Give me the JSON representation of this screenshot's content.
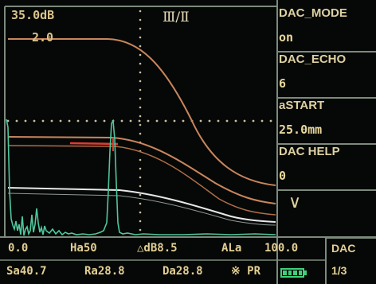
{
  "screen": {
    "gain_top": "35.0dB",
    "gain_ref": "2.0",
    "range_mode": "Ⅲ/Ⅱ"
  },
  "side_menu": {
    "items": [
      {
        "label": "DAC_MODE",
        "value": "on"
      },
      {
        "label": "DAC_ECHO",
        "value": "6"
      },
      {
        "label": "aSTART",
        "value": "25.0mm"
      },
      {
        "label": "DAC HELP",
        "value": "0"
      }
    ],
    "more_arrow": "∨"
  },
  "status_bar": {
    "row1": {
      "pos": "0.0",
      "ha": "Ha50",
      "delta_db": "△dB8.5",
      "ala_label": "ALa",
      "ala_value": "100.0"
    },
    "row2": {
      "sa": "Sa40.7",
      "ra": "Ra28.8",
      "da": "Da28.8",
      "pr": "※ PR"
    }
  },
  "menu_page": {
    "title": "DAC",
    "page": "1/3"
  },
  "colors": {
    "dac_curve": "#c9865c",
    "echo_trace": "#4fc79c",
    "gate": "#e23b2f",
    "reference_curve": "#e8e8e8",
    "grid_dots": "#c8c0a0",
    "frame": "#7c8a7c"
  },
  "icons": {
    "battery": "battery-icon"
  }
}
